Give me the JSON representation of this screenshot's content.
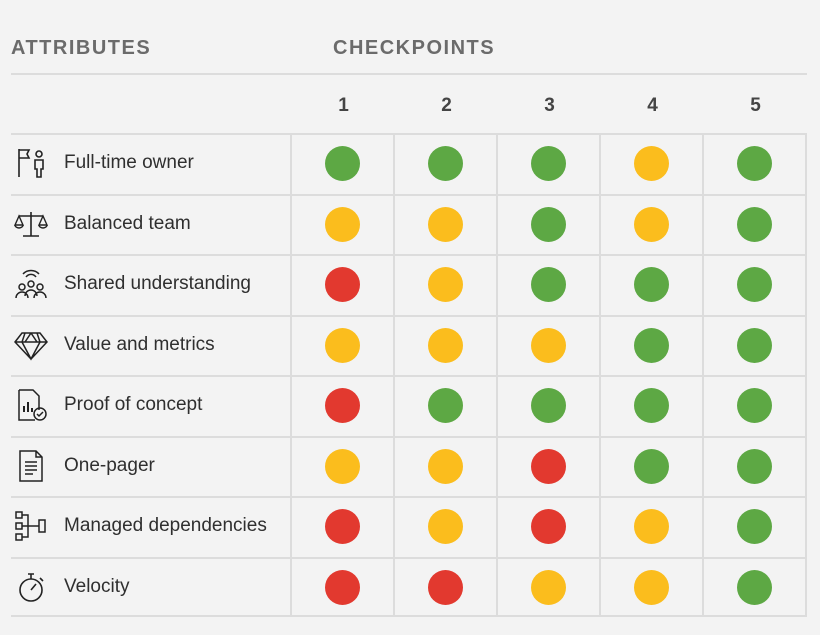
{
  "header": {
    "attributes": "ATTRIBUTES",
    "checkpoints": "CHECKPOINTS"
  },
  "colors": {
    "green": "#5da844",
    "yellow": "#fbbd1d",
    "red": "#e2392f"
  },
  "chart_data": {
    "type": "table",
    "columns": [
      "1",
      "2",
      "3",
      "4",
      "5"
    ],
    "rows": [
      {
        "label": "Full-time owner",
        "icon": "flag-person-icon",
        "statuses": [
          "green",
          "green",
          "green",
          "yellow",
          "green"
        ]
      },
      {
        "label": "Balanced team",
        "icon": "scales-icon",
        "statuses": [
          "yellow",
          "yellow",
          "green",
          "yellow",
          "green"
        ]
      },
      {
        "label": "Shared understanding",
        "icon": "group-broadcast-icon",
        "statuses": [
          "red",
          "yellow",
          "green",
          "green",
          "green"
        ]
      },
      {
        "label": "Value and metrics",
        "icon": "diamond-icon",
        "statuses": [
          "yellow",
          "yellow",
          "yellow",
          "green",
          "green"
        ]
      },
      {
        "label": "Proof of concept",
        "icon": "chart-document-check-icon",
        "statuses": [
          "red",
          "green",
          "green",
          "green",
          "green"
        ]
      },
      {
        "label": "One-pager",
        "icon": "document-icon",
        "statuses": [
          "yellow",
          "yellow",
          "red",
          "green",
          "green"
        ]
      },
      {
        "label": "Managed dependencies",
        "icon": "hierarchy-icon",
        "statuses": [
          "red",
          "yellow",
          "red",
          "yellow",
          "green"
        ]
      },
      {
        "label": "Velocity",
        "icon": "stopwatch-icon",
        "statuses": [
          "red",
          "red",
          "yellow",
          "yellow",
          "green"
        ]
      }
    ]
  }
}
